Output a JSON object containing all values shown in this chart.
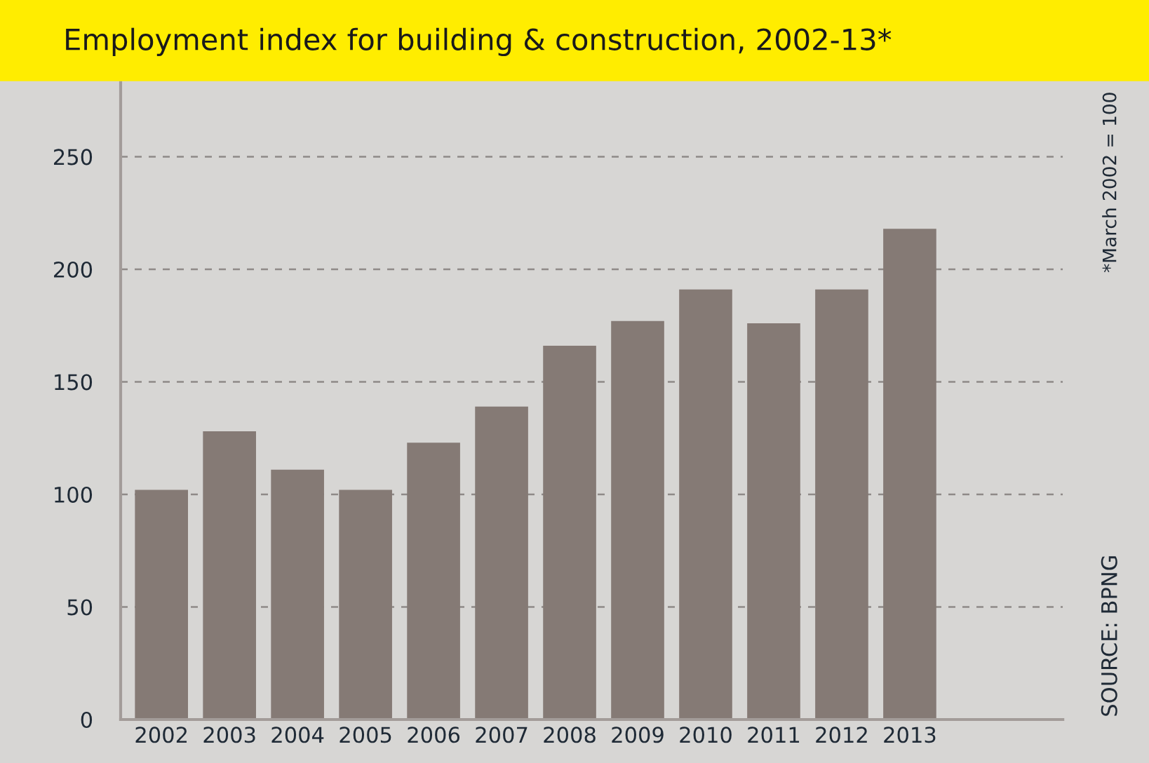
{
  "chart_data": {
    "type": "bar",
    "title": "Employment index for building & construction, 2002-13*",
    "categories": [
      "2002",
      "2003",
      "2004",
      "2005",
      "2006",
      "2007",
      "2008",
      "2009",
      "2010",
      "2011",
      "2012",
      "2013"
    ],
    "values": [
      102,
      128,
      111,
      102,
      123,
      139,
      166,
      177,
      191,
      176,
      191,
      218
    ],
    "color": "#857a75",
    "ylim": [
      0,
      283
    ],
    "yticks": [
      0,
      50,
      100,
      150,
      200,
      250
    ],
    "grid": "y",
    "annotations": [
      "*March 2002 = 100",
      "SOURCE: BPNG"
    ]
  }
}
